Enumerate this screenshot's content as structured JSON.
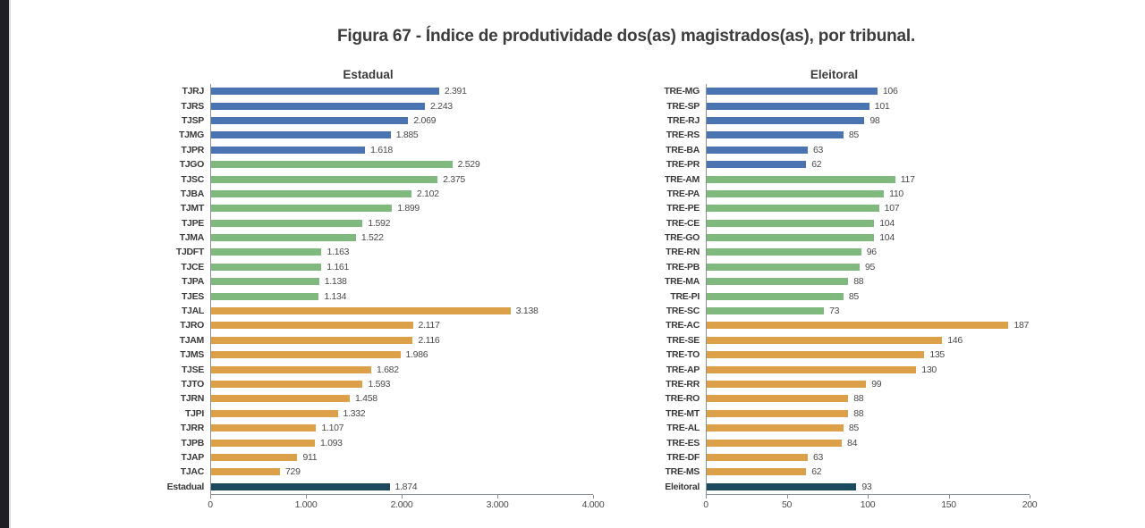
{
  "figure": {
    "title": "Figura 67 - Índice de produtividade dos(as) magistrados(as), por tribunal."
  },
  "palette": {
    "blue": "#4a73b2",
    "green": "#7fb97d",
    "orange": "#dca048",
    "total": "#1b495d",
    "axis": "#8a9298"
  },
  "chart_data": [
    {
      "type": "bar",
      "orientation": "horizontal",
      "title": "Estadual",
      "xlabel": "",
      "ylabel": "",
      "xlim": [
        0,
        4000
      ],
      "x_ticks": [
        "0",
        "1.000",
        "2.000",
        "3.000",
        "4.000"
      ],
      "grid": false,
      "legend": "none",
      "bars": [
        {
          "label": "TJRJ",
          "value": 2391,
          "display": "2.391",
          "group": "blue"
        },
        {
          "label": "TJRS",
          "value": 2243,
          "display": "2.243",
          "group": "blue"
        },
        {
          "label": "TJSP",
          "value": 2069,
          "display": "2.069",
          "group": "blue"
        },
        {
          "label": "TJMG",
          "value": 1885,
          "display": "1.885",
          "group": "blue"
        },
        {
          "label": "TJPR",
          "value": 1618,
          "display": "1.618",
          "group": "blue"
        },
        {
          "label": "TJGO",
          "value": 2529,
          "display": "2.529",
          "group": "green"
        },
        {
          "label": "TJSC",
          "value": 2375,
          "display": "2.375",
          "group": "green"
        },
        {
          "label": "TJBA",
          "value": 2102,
          "display": "2.102",
          "group": "green"
        },
        {
          "label": "TJMT",
          "value": 1899,
          "display": "1.899",
          "group": "green"
        },
        {
          "label": "TJPE",
          "value": 1592,
          "display": "1.592",
          "group": "green"
        },
        {
          "label": "TJMA",
          "value": 1522,
          "display": "1.522",
          "group": "green"
        },
        {
          "label": "TJDFT",
          "value": 1163,
          "display": "1.163",
          "group": "green"
        },
        {
          "label": "TJCE",
          "value": 1161,
          "display": "1.161",
          "group": "green"
        },
        {
          "label": "TJPA",
          "value": 1138,
          "display": "1.138",
          "group": "green"
        },
        {
          "label": "TJES",
          "value": 1134,
          "display": "1.134",
          "group": "green"
        },
        {
          "label": "TJAL",
          "value": 3138,
          "display": "3.138",
          "group": "orange"
        },
        {
          "label": "TJRO",
          "value": 2117,
          "display": "2.117",
          "group": "orange"
        },
        {
          "label": "TJAM",
          "value": 2116,
          "display": "2.116",
          "group": "orange"
        },
        {
          "label": "TJMS",
          "value": 1986,
          "display": "1.986",
          "group": "orange"
        },
        {
          "label": "TJSE",
          "value": 1682,
          "display": "1.682",
          "group": "orange"
        },
        {
          "label": "TJTO",
          "value": 1593,
          "display": "1.593",
          "group": "orange"
        },
        {
          "label": "TJRN",
          "value": 1458,
          "display": "1.458",
          "group": "orange"
        },
        {
          "label": "TJPI",
          "value": 1332,
          "display": "1.332",
          "group": "orange"
        },
        {
          "label": "TJRR",
          "value": 1107,
          "display": "1.107",
          "group": "orange"
        },
        {
          "label": "TJPB",
          "value": 1093,
          "display": "1.093",
          "group": "orange"
        },
        {
          "label": "TJAP",
          "value": 911,
          "display": "911",
          "group": "orange"
        },
        {
          "label": "TJAC",
          "value": 729,
          "display": "729",
          "group": "orange"
        },
        {
          "label": "Estadual",
          "value": 1874,
          "display": "1.874",
          "group": "total"
        }
      ]
    },
    {
      "type": "bar",
      "orientation": "horizontal",
      "title": "Eleitoral",
      "xlabel": "",
      "ylabel": "",
      "xlim": [
        0,
        200
      ],
      "x_ticks": [
        "0",
        "50",
        "100",
        "150",
        "200"
      ],
      "grid": false,
      "legend": "none",
      "bars": [
        {
          "label": "TRE-MG",
          "value": 106,
          "display": "106",
          "group": "blue"
        },
        {
          "label": "TRE-SP",
          "value": 101,
          "display": "101",
          "group": "blue"
        },
        {
          "label": "TRE-RJ",
          "value": 98,
          "display": "98",
          "group": "blue"
        },
        {
          "label": "TRE-RS",
          "value": 85,
          "display": "85",
          "group": "blue"
        },
        {
          "label": "TRE-BA",
          "value": 63,
          "display": "63",
          "group": "blue"
        },
        {
          "label": "TRE-PR",
          "value": 62,
          "display": "62",
          "group": "blue"
        },
        {
          "label": "TRE-AM",
          "value": 117,
          "display": "117",
          "group": "green"
        },
        {
          "label": "TRE-PA",
          "value": 110,
          "display": "110",
          "group": "green"
        },
        {
          "label": "TRE-PE",
          "value": 107,
          "display": "107",
          "group": "green"
        },
        {
          "label": "TRE-CE",
          "value": 104,
          "display": "104",
          "group": "green"
        },
        {
          "label": "TRE-GO",
          "value": 104,
          "display": "104",
          "group": "green"
        },
        {
          "label": "TRE-RN",
          "value": 96,
          "display": "96",
          "group": "green"
        },
        {
          "label": "TRE-PB",
          "value": 95,
          "display": "95",
          "group": "green"
        },
        {
          "label": "TRE-MA",
          "value": 88,
          "display": "88",
          "group": "green"
        },
        {
          "label": "TRE-PI",
          "value": 85,
          "display": "85",
          "group": "green"
        },
        {
          "label": "TRE-SC",
          "value": 73,
          "display": "73",
          "group": "green"
        },
        {
          "label": "TRE-AC",
          "value": 187,
          "display": "187",
          "group": "orange"
        },
        {
          "label": "TRE-SE",
          "value": 146,
          "display": "146",
          "group": "orange"
        },
        {
          "label": "TRE-TO",
          "value": 135,
          "display": "135",
          "group": "orange"
        },
        {
          "label": "TRE-AP",
          "value": 130,
          "display": "130",
          "group": "orange"
        },
        {
          "label": "TRE-RR",
          "value": 99,
          "display": "99",
          "group": "orange"
        },
        {
          "label": "TRE-RO",
          "value": 88,
          "display": "88",
          "group": "orange"
        },
        {
          "label": "TRE-MT",
          "value": 88,
          "display": "88",
          "group": "orange"
        },
        {
          "label": "TRE-AL",
          "value": 85,
          "display": "85",
          "group": "orange"
        },
        {
          "label": "TRE-ES",
          "value": 84,
          "display": "84",
          "group": "orange"
        },
        {
          "label": "TRE-DF",
          "value": 63,
          "display": "63",
          "group": "orange"
        },
        {
          "label": "TRE-MS",
          "value": 62,
          "display": "62",
          "group": "orange"
        },
        {
          "label": "Eleitoral",
          "value": 93,
          "display": "93",
          "group": "total"
        }
      ]
    }
  ]
}
